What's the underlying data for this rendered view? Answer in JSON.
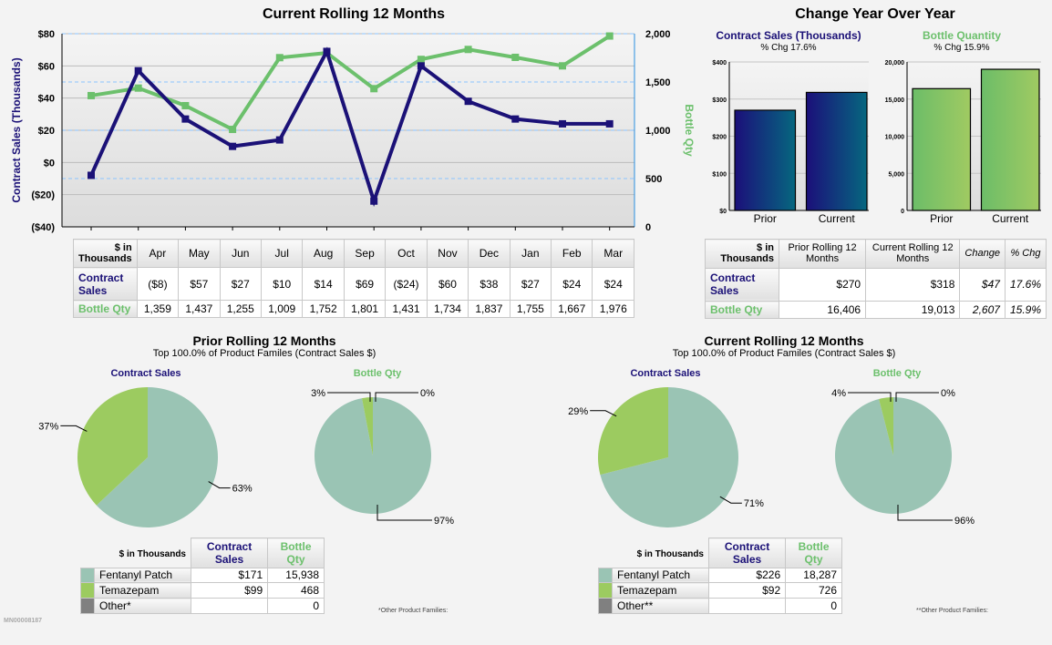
{
  "colors": {
    "sales": "#1b1177",
    "bottle": "#6cc06c",
    "fentanyl": "#9ac4b4",
    "temazepam": "#9ccb60",
    "other": "#808080"
  },
  "chart_data": [
    {
      "type": "line",
      "title": "Current Rolling 12 Months",
      "categories": [
        "Apr",
        "May",
        "Jun",
        "Jul",
        "Aug",
        "Sep",
        "Oct",
        "Nov",
        "Dec",
        "Jan",
        "Feb",
        "Mar"
      ],
      "ylabel": "Contract Sales (Thousands)",
      "ylim": [
        -40,
        80
      ],
      "yticks": [
        "($40)",
        "($20)",
        "$0",
        "$20",
        "$40",
        "$60",
        "$80"
      ],
      "y2label": "Bottle Qty",
      "y2lim": [
        0,
        2000
      ],
      "y2ticks": [
        "0",
        "500",
        "1,000",
        "1,500",
        "2,000"
      ],
      "grid": true,
      "series": [
        {
          "name": "Contract Sales",
          "axis": "left",
          "values": [
            -8,
            57,
            27,
            10,
            14,
            69,
            -24,
            60,
            38,
            27,
            24,
            24
          ]
        },
        {
          "name": "Bottle Qty",
          "axis": "right",
          "values": [
            1359,
            1437,
            1255,
            1009,
            1752,
            1801,
            1431,
            1734,
            1837,
            1755,
            1667,
            1976
          ]
        }
      ]
    },
    {
      "type": "bar",
      "title": "Contract Sales (Thousands)",
      "subtitle": "% Chg 17.6%",
      "categories": [
        "Prior",
        "Current"
      ],
      "values": [
        270,
        318
      ],
      "ylim": [
        0,
        400
      ],
      "yticks": [
        "$0",
        "$100",
        "$200",
        "$300",
        "$400"
      ]
    },
    {
      "type": "bar",
      "title": "Bottle Quantity",
      "subtitle": "% Chg 15.9%",
      "categories": [
        "Prior",
        "Current"
      ],
      "values": [
        16406,
        19013
      ],
      "ylim": [
        0,
        20000
      ],
      "yticks": [
        "0",
        "5,000",
        "10,000",
        "15,000",
        "20,000"
      ]
    },
    {
      "type": "pie",
      "title": "Contract Sales",
      "period": "prior",
      "values": [
        63,
        37
      ],
      "labels": [
        "63%",
        "37%"
      ]
    },
    {
      "type": "pie",
      "title": "Bottle Qty",
      "period": "prior",
      "values": [
        97,
        3,
        0
      ],
      "labels": [
        "97%",
        "3%",
        "0%"
      ]
    },
    {
      "type": "pie",
      "title": "Contract Sales",
      "period": "current",
      "values": [
        71,
        29
      ],
      "labels": [
        "71%",
        "29%"
      ]
    },
    {
      "type": "pie",
      "title": "Bottle Qty",
      "period": "current",
      "values": [
        96,
        4,
        0
      ],
      "labels": [
        "96%",
        "4%",
        "0%"
      ]
    }
  ],
  "yoy": {
    "title": "Change Year Over Year"
  },
  "monthly_table": {
    "corner": "$ in Thousands",
    "rows": [
      {
        "label": "Contract Sales",
        "values": [
          "($8)",
          "$57",
          "$27",
          "$10",
          "$14",
          "$69",
          "($24)",
          "$60",
          "$38",
          "$27",
          "$24",
          "$24"
        ]
      },
      {
        "label": "Bottle Qty",
        "values": [
          "1,359",
          "1,437",
          "1,255",
          "1,009",
          "1,752",
          "1,801",
          "1,431",
          "1,734",
          "1,837",
          "1,755",
          "1,667",
          "1,976"
        ]
      }
    ]
  },
  "yoy_table": {
    "corner": "$ in Thousands",
    "headers": [
      "Prior Rolling 12 Months",
      "Current Rolling 12 Months",
      "Change",
      "% Chg"
    ],
    "rows": [
      {
        "label": "Contract Sales",
        "values": [
          "$270",
          "$318",
          "$47",
          "17.6%"
        ]
      },
      {
        "label": "Bottle Qty",
        "values": [
          "16,406",
          "19,013",
          "2,607",
          "15.9%"
        ]
      }
    ]
  },
  "prior": {
    "title": "Prior Rolling 12 Months",
    "subtitle": "Top 100.0% of Product Familes (Contract Sales $)",
    "footnote": "*Other Product Families:",
    "table": {
      "corner": "$ in Thousands",
      "h1": "Contract Sales",
      "h2": "Bottle Qty",
      "rows": [
        {
          "label": "Fentanyl Patch",
          "sales": "$171",
          "qty": "15,938"
        },
        {
          "label": "Temazepam",
          "sales": "$99",
          "qty": "468"
        },
        {
          "label": "Other*",
          "sales": "",
          "qty": "0"
        }
      ]
    }
  },
  "current": {
    "title": "Current Rolling 12 Months",
    "subtitle": "Top 100.0% of Product Familes (Contract Sales $)",
    "footnote": "**Other Product Families:",
    "table": {
      "corner": "$ in Thousands",
      "h1": "Contract Sales",
      "h2": "Bottle Qty",
      "rows": [
        {
          "label": "Fentanyl Patch",
          "sales": "$226",
          "qty": "18,287"
        },
        {
          "label": "Temazepam",
          "sales": "$92",
          "qty": "726"
        },
        {
          "label": "Other**",
          "sales": "",
          "qty": "0"
        }
      ]
    }
  },
  "footer_id": "MN00008187"
}
